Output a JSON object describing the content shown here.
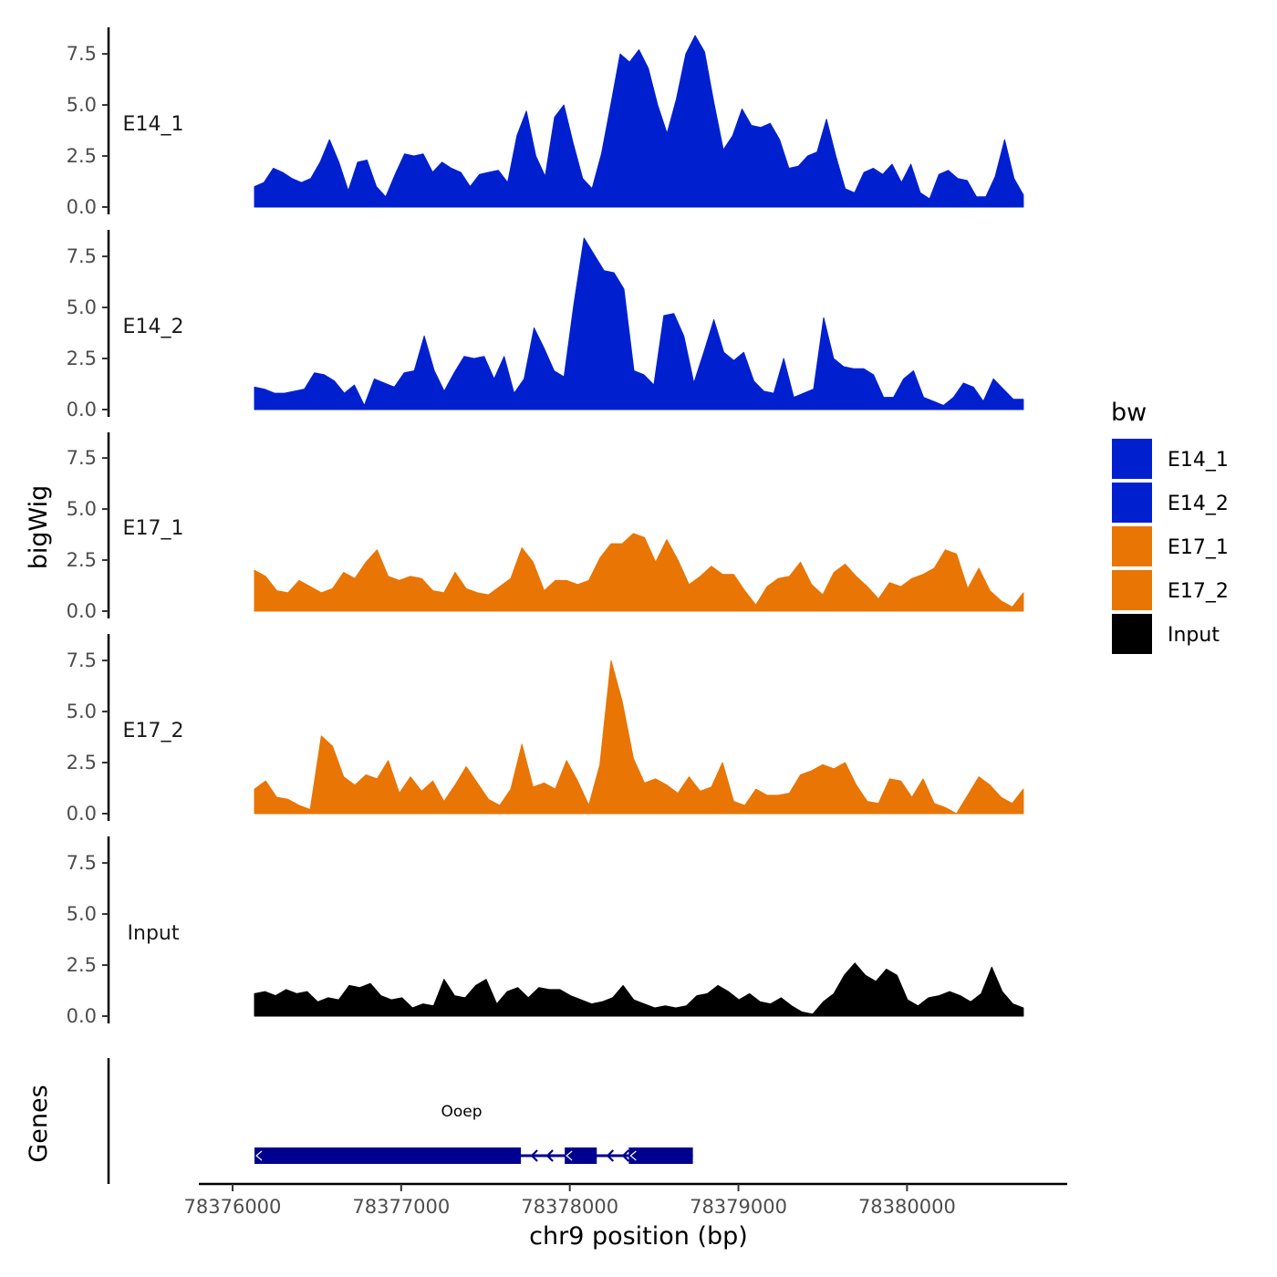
{
  "chart_data": {
    "type": "area",
    "chromosome": "chr9",
    "xlabel": "chr9 position (bp)",
    "ylabel": "bigWig",
    "genes_label": "Genes",
    "xlim": [
      78375800,
      78380950
    ],
    "region": [
      78376130,
      78380690
    ],
    "ylim": [
      0,
      8.8
    ],
    "x_ticks": [
      78376000,
      78377000,
      78378000,
      78379000,
      78380000
    ],
    "x_tick_labels": [
      "78376000",
      "78377000",
      "78378000",
      "78379000",
      "78380000"
    ],
    "y_ticks": [
      0,
      2.5,
      5,
      7.5
    ],
    "y_tick_labels": [
      "0.0",
      "2.5",
      "5.0",
      "7.5"
    ],
    "legend": {
      "title": "bw",
      "entries": [
        {
          "label": "E14_1",
          "color": "#0020d0"
        },
        {
          "label": "E14_2",
          "color": "#0020d0"
        },
        {
          "label": "E17_1",
          "color": "#e87504"
        },
        {
          "label": "E17_2",
          "color": "#e87504"
        },
        {
          "label": "Input",
          "color": "#000000"
        }
      ]
    },
    "series": [
      {
        "name": "E14_1",
        "color": "#0020d0",
        "values": [
          1.0,
          1.2,
          1.9,
          1.7,
          1.4,
          1.2,
          1.4,
          2.2,
          3.3,
          2.2,
          0.8,
          2.2,
          2.3,
          1.0,
          0.5,
          1.6,
          2.6,
          2.5,
          2.6,
          1.7,
          2.2,
          1.9,
          1.7,
          1.0,
          1.6,
          1.7,
          1.8,
          1.2,
          3.5,
          4.7,
          2.5,
          1.5,
          4.4,
          5.0,
          3.1,
          1.4,
          0.9,
          2.6,
          5.0,
          7.5,
          7.1,
          7.7,
          6.8,
          5.0,
          3.6,
          5.3,
          7.5,
          8.4,
          7.6,
          5.1,
          2.8,
          3.5,
          4.8,
          4.0,
          3.9,
          4.1,
          3.3,
          1.9,
          2.0,
          2.5,
          2.7,
          4.3,
          2.5,
          0.9,
          0.7,
          1.7,
          1.9,
          1.6,
          2.1,
          1.2,
          2.1,
          0.7,
          0.4,
          1.6,
          1.8,
          1.4,
          1.3,
          0.5,
          0.5,
          1.5,
          3.3,
          1.4,
          0.6
        ]
      },
      {
        "name": "E14_2",
        "color": "#0020d0",
        "values": [
          1.1,
          1.0,
          0.8,
          0.8,
          0.9,
          1.0,
          1.8,
          1.7,
          1.4,
          0.8,
          1.2,
          0.2,
          1.5,
          1.3,
          1.1,
          1.8,
          1.9,
          3.6,
          1.9,
          0.9,
          1.8,
          2.6,
          2.5,
          2.6,
          1.5,
          2.6,
          0.8,
          1.5,
          4.0,
          3.0,
          1.9,
          1.6,
          5.2,
          8.4,
          7.6,
          6.8,
          6.7,
          5.9,
          1.9,
          1.7,
          1.2,
          4.6,
          4.7,
          3.6,
          1.3,
          2.8,
          4.4,
          2.8,
          2.4,
          2.8,
          1.4,
          0.9,
          0.8,
          2.5,
          0.6,
          0.8,
          1.0,
          4.5,
          2.5,
          2.1,
          2.0,
          2.0,
          1.7,
          0.6,
          0.6,
          1.5,
          1.9,
          0.6,
          0.4,
          0.2,
          0.6,
          1.3,
          1.1,
          0.4,
          1.5,
          1.0,
          0.5,
          0.5
        ]
      },
      {
        "name": "E17_1",
        "color": "#e87504",
        "values": [
          2.0,
          1.7,
          1.0,
          0.9,
          1.5,
          1.2,
          0.9,
          1.1,
          1.9,
          1.6,
          2.4,
          3.0,
          1.7,
          1.5,
          1.7,
          1.6,
          1.0,
          0.9,
          1.9,
          1.1,
          0.9,
          0.8,
          1.2,
          1.6,
          3.1,
          2.4,
          1.0,
          1.5,
          1.5,
          1.3,
          1.5,
          2.6,
          3.3,
          3.3,
          3.8,
          3.6,
          2.4,
          3.5,
          2.5,
          1.3,
          1.7,
          2.2,
          1.8,
          1.8,
          1.0,
          0.3,
          1.2,
          1.6,
          1.7,
          2.4,
          1.3,
          0.8,
          1.9,
          2.3,
          1.7,
          1.2,
          0.6,
          1.4,
          1.2,
          1.6,
          1.8,
          2.1,
          3.0,
          2.8,
          1.1,
          2.1,
          1.0,
          0.5,
          0.2,
          0.9
        ]
      },
      {
        "name": "E17_2",
        "color": "#e87504",
        "values": [
          1.2,
          1.6,
          0.8,
          0.7,
          0.4,
          0.2,
          3.8,
          3.3,
          1.8,
          1.4,
          1.9,
          1.7,
          2.6,
          1.0,
          1.8,
          1.1,
          1.6,
          0.6,
          1.4,
          2.3,
          1.5,
          0.7,
          0.4,
          1.2,
          3.4,
          1.3,
          1.5,
          1.2,
          2.6,
          1.6,
          0.4,
          2.4,
          7.5,
          5.5,
          2.7,
          1.5,
          1.7,
          1.4,
          1.0,
          1.8,
          1.1,
          1.3,
          2.5,
          0.6,
          0.4,
          1.2,
          0.9,
          0.9,
          1.0,
          1.9,
          2.1,
          2.4,
          2.2,
          2.5,
          1.4,
          0.6,
          0.5,
          1.7,
          1.6,
          0.8,
          1.7,
          0.5,
          0.3,
          0.0,
          0.9,
          1.8,
          1.4,
          0.8,
          0.5,
          1.2
        ]
      },
      {
        "name": "Input",
        "color": "#000000",
        "values": [
          1.1,
          1.2,
          1.0,
          1.3,
          1.1,
          1.2,
          0.7,
          0.9,
          0.8,
          1.5,
          1.4,
          1.6,
          1.0,
          0.8,
          0.9,
          0.4,
          0.6,
          0.5,
          1.8,
          1.0,
          0.9,
          1.5,
          1.8,
          0.6,
          1.2,
          1.4,
          0.9,
          1.4,
          1.3,
          1.3,
          1.0,
          0.8,
          0.6,
          0.7,
          0.9,
          1.5,
          0.8,
          0.6,
          0.4,
          0.5,
          0.4,
          0.5,
          1.0,
          1.1,
          1.5,
          1.2,
          0.8,
          1.1,
          0.7,
          0.6,
          0.9,
          0.5,
          0.2,
          0.1,
          0.7,
          1.1,
          2.0,
          2.6,
          2.0,
          1.7,
          2.3,
          2.0,
          0.8,
          0.5,
          0.9,
          1.0,
          1.2,
          1.0,
          0.7,
          1.1,
          2.4,
          1.2,
          0.6,
          0.4
        ]
      }
    ],
    "genes": [
      {
        "name": "Ooep",
        "start": 78376130,
        "end": 78378730,
        "strand": "-",
        "exons": [
          [
            78376130,
            78377710
          ],
          [
            78377970,
            78378160
          ],
          [
            78378350,
            78378730
          ]
        ],
        "color": "#000090"
      }
    ]
  }
}
